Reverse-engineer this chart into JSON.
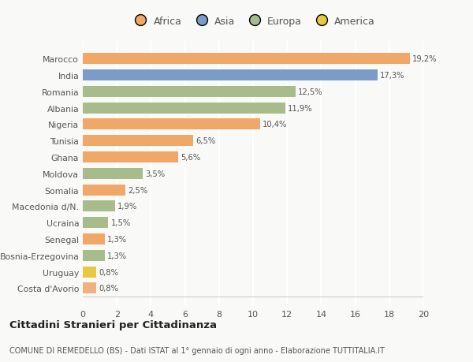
{
  "categories": [
    "Costa d'Avorio",
    "Uruguay",
    "Bosnia-Erzegovina",
    "Senegal",
    "Ucraina",
    "Macedonia d/N.",
    "Somalia",
    "Moldova",
    "Ghana",
    "Tunisia",
    "Nigeria",
    "Albania",
    "Romania",
    "India",
    "Marocco"
  ],
  "values": [
    0.8,
    0.8,
    1.3,
    1.3,
    1.5,
    1.9,
    2.5,
    3.5,
    5.6,
    6.5,
    10.4,
    11.9,
    12.5,
    17.3,
    19.2
  ],
  "colors": [
    "#f0b080",
    "#e8c840",
    "#a8bb8a",
    "#f0a868",
    "#a8bb8a",
    "#a8bb8a",
    "#f0a868",
    "#a8bb8a",
    "#f0a868",
    "#f0a868",
    "#f0a868",
    "#a8bb8a",
    "#a8bb8a",
    "#7b9cc8",
    "#f0a868"
  ],
  "labels": [
    "0,8%",
    "0,8%",
    "1,3%",
    "1,3%",
    "1,5%",
    "1,9%",
    "2,5%",
    "3,5%",
    "5,6%",
    "6,5%",
    "10,4%",
    "11,9%",
    "12,5%",
    "17,3%",
    "19,2%"
  ],
  "legend_labels": [
    "Africa",
    "Asia",
    "Europa",
    "America"
  ],
  "legend_colors": [
    "#f0a868",
    "#7b9cc8",
    "#a8bb8a",
    "#e8c840"
  ],
  "title": "Cittadini Stranieri per Cittadinanza",
  "subtitle": "COMUNE DI REMEDELLO (BS) - Dati ISTAT al 1° gennaio di ogni anno - Elaborazione TUTTITALIA.IT",
  "xlim": [
    0,
    20
  ],
  "xticks": [
    0,
    2,
    4,
    6,
    8,
    10,
    12,
    14,
    16,
    18,
    20
  ],
  "bg_color": "#f9f9f7",
  "grid_color": "#ffffff"
}
